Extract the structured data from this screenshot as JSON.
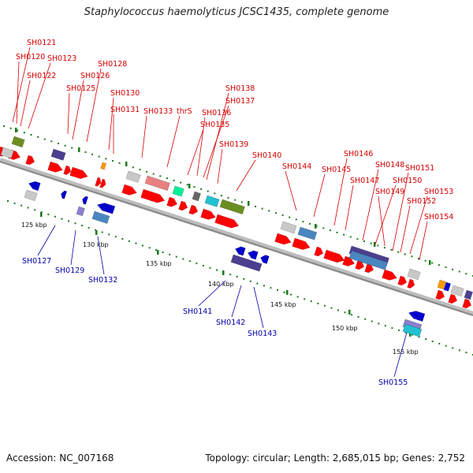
{
  "title": "Staphylococcus haemolyticus JCSC1435, complete genome",
  "footer": {
    "accession": "Accession: NC_007168",
    "summary": "Topology: circular; Length: 2,685,015 bp; Genes: 2,752"
  },
  "colors": {
    "forward_gene": "#ff0000",
    "reverse_gene": "#0000cc",
    "forward_label": "#d40000",
    "reverse_label": "#0000aa",
    "backbone": "#8a8a8a",
    "tick": "#1a7a1a"
  },
  "tick_labels": [
    "125 kbp",
    "130 kbp",
    "135 kbp",
    "140 kbp",
    "145 kbp",
    "150 kbp",
    "155 kbp"
  ],
  "forward_genes": [
    "SH0121",
    "SH0120",
    "SH0123",
    "SH0122",
    "SH0128",
    "SH0126",
    "SH0125",
    "SH0130",
    "SH0131",
    "SH0133",
    "thrS",
    "SH0138",
    "SH0137",
    "SH0136",
    "SH0135",
    "SH0139",
    "SH0140",
    "SH0144",
    "SH0145",
    "SH0146",
    "SH0147",
    "SH0148",
    "SH0150",
    "SH0149",
    "SH0151",
    "SH0153",
    "SH0152",
    "SH0154"
  ],
  "reverse_genes": [
    "SH0127",
    "SH0129",
    "SH0132",
    "SH0141",
    "SH0142",
    "SH0143",
    "SH0155"
  ]
}
